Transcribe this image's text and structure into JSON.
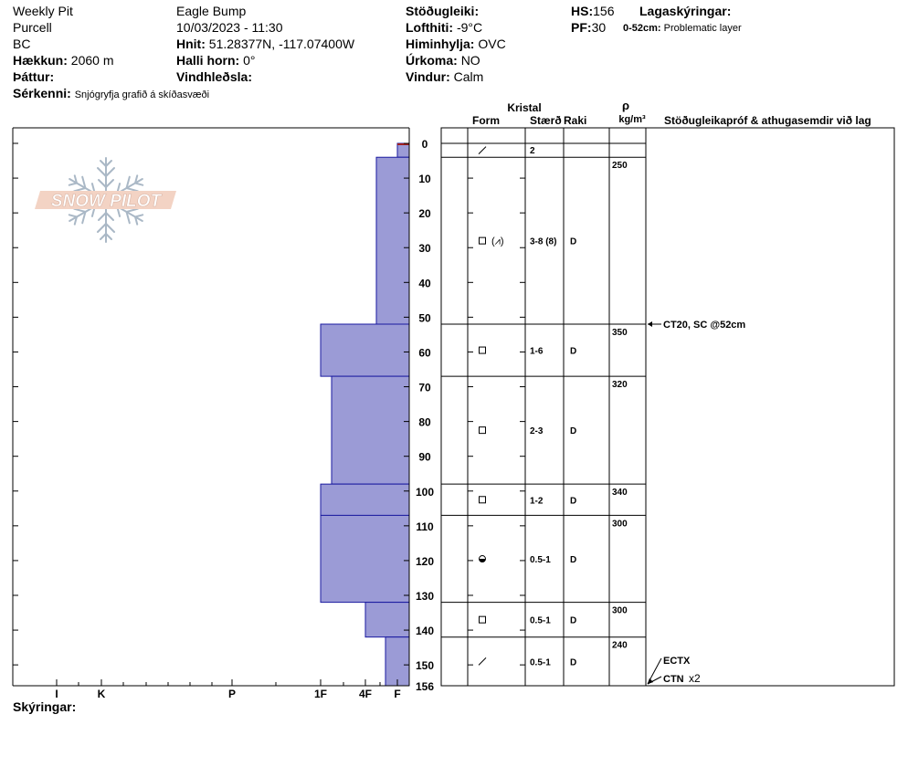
{
  "header": {
    "pit_name": "Weekly Pit",
    "range": "Purcell",
    "region": "BC",
    "elevation": {
      "label": "Hækkun:",
      "value": "2060 m"
    },
    "aspect": {
      "label": "Þáttur:",
      "value": ""
    },
    "location": "Eagle Bump",
    "datetime": "10/03/2023 - 11:30",
    "coords": {
      "label": "Hnit:",
      "value": "51.28377N, -117.07400W"
    },
    "slope": {
      "label": "Halli horn:",
      "value": "0°"
    },
    "wind_loading": {
      "label": "Vindhleðsla:",
      "value": ""
    },
    "stability": {
      "label": "Stöðugleiki:",
      "value": ""
    },
    "air_temp": {
      "label": "Lofthiti:",
      "value": "-9°C"
    },
    "sky": {
      "label": "Himinhylja:",
      "value": "OVC"
    },
    "precip": {
      "label": "Úrkoma:",
      "value": "NO"
    },
    "wind": {
      "label": "Vindur:",
      "value": "Calm"
    },
    "hs": {
      "label": "HS:",
      "value": "156"
    },
    "pf": {
      "label": "PF:",
      "value": "30"
    },
    "layer_notes": {
      "label": "Lagaskýringar:",
      "range": "0-52cm:",
      "text": "Problematic layer"
    },
    "special": {
      "label": "Sérkenni:",
      "value": "Snjógryfja grafið á skíðasvæði"
    }
  },
  "logo": {
    "text": "SNOW PILOT"
  },
  "table_headers": {
    "crystal": "Kristal",
    "form": "Form",
    "size": "Stærð",
    "moisture": "Raki",
    "rho": "ρ",
    "density_unit": "kg/m³",
    "tests": "Stöðugleikapróf & athugasemdir við lag"
  },
  "hardness_labels": [
    "I",
    "K",
    "P",
    "1F",
    "4F",
    "F"
  ],
  "depth_ticks": [
    0,
    10,
    20,
    30,
    40,
    50,
    60,
    70,
    80,
    90,
    100,
    110,
    120,
    130,
    140,
    150,
    156
  ],
  "chart_data": {
    "type": "snow_profile",
    "total_depth_cm": 156,
    "hardness_scale": [
      "I",
      "K",
      "P",
      "1F",
      "4F",
      "F"
    ],
    "layers": [
      {
        "top": 0,
        "bottom": 4,
        "hardness": "F",
        "form_icon": "slash-icon",
        "form_text": "",
        "size": "2",
        "moisture": "",
        "density": ""
      },
      {
        "top": 4,
        "bottom": 52,
        "hardness": "4F-",
        "form_icon": "square-icon",
        "form_text": "(⩘)",
        "size": "3-8 (8)",
        "moisture": "D",
        "density": "250"
      },
      {
        "top": 52,
        "bottom": 67,
        "hardness": "1F",
        "form_icon": "square-icon",
        "form_text": "",
        "size": "1-6",
        "moisture": "D",
        "density": "350"
      },
      {
        "top": 67,
        "bottom": 98,
        "hardness": "1F-",
        "form_icon": "square-icon",
        "form_text": "",
        "size": "2-3",
        "moisture": "D",
        "density": "320"
      },
      {
        "top": 98,
        "bottom": 107,
        "hardness": "1F",
        "form_icon": "square-icon",
        "form_text": "",
        "size": "1-2",
        "moisture": "D",
        "density": "340"
      },
      {
        "top": 107,
        "bottom": 132,
        "hardness": "1F",
        "form_icon": "rounded-faceted-icon",
        "form_text": "",
        "size": "0.5-1",
        "moisture": "D",
        "density": "300"
      },
      {
        "top": 132,
        "bottom": 142,
        "hardness": "4F",
        "form_icon": "square-icon",
        "form_text": "",
        "size": "0.5-1",
        "moisture": "D",
        "density": "300"
      },
      {
        "top": 142,
        "bottom": 156,
        "hardness": "F+",
        "form_icon": "slash-icon",
        "form_text": "",
        "size": "0.5-1",
        "moisture": "D",
        "density": "240"
      }
    ],
    "stability_tests": [
      {
        "depth": 52,
        "text": "CT20, SC @52cm"
      },
      {
        "depth": 156,
        "text": "ECTX"
      },
      {
        "depth": 156,
        "text": "CTN",
        "extra": "x2"
      }
    ]
  },
  "footer": {
    "notes_label": "Skýringar:"
  }
}
